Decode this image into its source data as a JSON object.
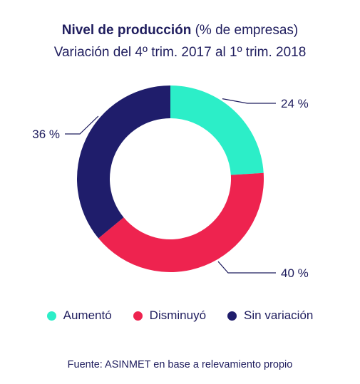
{
  "header": {
    "title_bold": "Nivel de producción",
    "title_rest": " (% de empresas)",
    "subtitle": "Variación del 4º trim. 2017 al 1º trim. 2018"
  },
  "colors": {
    "text": "#1f1d5e",
    "aumento": "#2ceec8",
    "disminuyo": "#ee234f",
    "sin_variacion": "#1f1d6b"
  },
  "chart_data": {
    "type": "pie",
    "donut": true,
    "categories": [
      "Aumentó",
      "Disminuyó",
      "Sin variación"
    ],
    "values": [
      24,
      40,
      36
    ],
    "unit": "%",
    "data_labels": [
      "24 %",
      "40 %",
      "36 %"
    ],
    "colors": [
      "#2ceec8",
      "#ee234f",
      "#1f1d6b"
    ],
    "title": "Nivel de producción (% de empresas)",
    "subtitle": "Variación del 4º trim. 2017 al 1º trim. 2018",
    "legend_position": "bottom"
  },
  "legend": {
    "items": [
      {
        "label": "Aumentó",
        "color": "#2ceec8"
      },
      {
        "label": "Disminuyó",
        "color": "#ee234f"
      },
      {
        "label": "Sin variación",
        "color": "#1f1d6b"
      }
    ]
  },
  "footer": {
    "source": "Fuente: ASINMET en base a relevamiento propio"
  }
}
